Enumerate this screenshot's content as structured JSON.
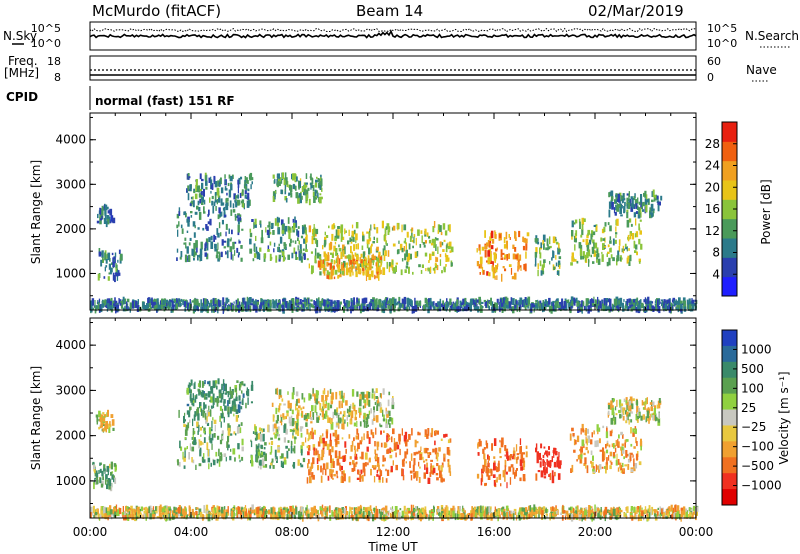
{
  "header": {
    "station": "McMurdo (fitACF)",
    "beam": "Beam 14",
    "date": "02/Mar/2019"
  },
  "strip_labels": {
    "nsky": "N.Sky",
    "nsearch": "N.Search",
    "freq": "Freq.",
    "freq_unit": "[MHz]",
    "nave": "Nave",
    "cpid": "CPID",
    "cpid_text": "normal (fast) 151 RF",
    "noise_ticks_left": [
      "10^5",
      "10^0"
    ],
    "noise_ticks_right": [
      "10^5",
      "10^0"
    ],
    "freq_ticks": [
      "18",
      "8"
    ],
    "nave_ticks": [
      "60",
      "0"
    ]
  },
  "chart_data": [
    {
      "type": "heatmap",
      "name": "power",
      "xlabel": "",
      "ylabel": "Slant Range [km]",
      "xlim": [
        0,
        24
      ],
      "ylim": [
        180,
        4600
      ],
      "yticks": [
        1000,
        2000,
        3000,
        4000
      ],
      "colorbar": {
        "label": "Power [dB]",
        "ticks": [
          4,
          8,
          12,
          16,
          20,
          24,
          28
        ],
        "range": [
          0,
          32
        ],
        "colors": [
          "#1f1fff",
          "#2a3fae",
          "#2b7a8a",
          "#4a9a5a",
          "#8ac43a",
          "#e8c418",
          "#f0a020",
          "#f06010",
          "#e82010"
        ]
      },
      "echo_regions": [
        {
          "t0": 0.2,
          "t1": 0.9,
          "r0": 2100,
          "r1": 2500,
          "level": 8
        },
        {
          "t0": 0.3,
          "t1": 1.2,
          "r0": 850,
          "r1": 1500,
          "level": 10
        },
        {
          "t0": 3.8,
          "t1": 6.4,
          "r0": 2500,
          "r1": 3200,
          "level": 10
        },
        {
          "t0": 3.4,
          "t1": 6.0,
          "r0": 1300,
          "r1": 2500,
          "level": 9
        },
        {
          "t0": 6.3,
          "t1": 8.5,
          "r0": 1300,
          "r1": 2200,
          "level": 11
        },
        {
          "t0": 7.2,
          "t1": 9.2,
          "r0": 2600,
          "r1": 3200,
          "level": 13
        },
        {
          "t0": 8.5,
          "t1": 14.3,
          "r0": 1000,
          "r1": 2100,
          "level": 17
        },
        {
          "t0": 9.0,
          "t1": 11.5,
          "r0": 900,
          "r1": 1400,
          "level": 22
        },
        {
          "t0": 15.3,
          "t1": 17.3,
          "r0": 900,
          "r1": 1900,
          "level": 24
        },
        {
          "t0": 17.6,
          "t1": 18.6,
          "r0": 1000,
          "r1": 1800,
          "level": 14
        },
        {
          "t0": 19.0,
          "t1": 21.8,
          "r0": 1200,
          "r1": 2200,
          "level": 15
        },
        {
          "t0": 20.5,
          "t1": 22.6,
          "r0": 2300,
          "r1": 2800,
          "level": 10
        },
        {
          "t0": 0.0,
          "t1": 24.0,
          "r0": 180,
          "r1": 400,
          "level": 9
        }
      ]
    },
    {
      "type": "heatmap",
      "name": "velocity",
      "xlabel": "Time UT",
      "ylabel": "Slant Range [km]",
      "xlim": [
        0,
        24
      ],
      "ylim": [
        180,
        4600
      ],
      "xticks": [
        "00:00",
        "04:00",
        "08:00",
        "12:00",
        "16:00",
        "20:00",
        "00:00"
      ],
      "yticks": [
        1000,
        2000,
        3000,
        4000
      ],
      "colorbar": {
        "label": "Velocity [m s⁻¹]",
        "ticks": [
          "1000",
          "500",
          "100",
          "25",
          "−25",
          "−100",
          "−500",
          "−1000"
        ],
        "colors": [
          "#2040c0",
          "#2a6a9a",
          "#3a8a6a",
          "#5aa050",
          "#90d040",
          "#c8c8c0",
          "#e8c840",
          "#f0a030",
          "#f07020",
          "#f03020",
          "#e00000"
        ]
      },
      "echo_regions": [
        {
          "t0": 0.2,
          "t1": 0.9,
          "r0": 2100,
          "r1": 2500,
          "v": 0
        },
        {
          "t0": 0.0,
          "t1": 1.0,
          "r0": 850,
          "r1": 1400,
          "v": 200
        },
        {
          "t0": 3.8,
          "t1": 6.4,
          "r0": 2500,
          "r1": 3200,
          "v": 300
        },
        {
          "t0": 3.4,
          "t1": 6.0,
          "r0": 1300,
          "r1": 2500,
          "v": 150
        },
        {
          "t0": 6.3,
          "t1": 8.5,
          "r0": 1300,
          "r1": 2200,
          "v": 150
        },
        {
          "t0": 7.2,
          "t1": 12.0,
          "r0": 2200,
          "r1": 3000,
          "v": 0
        },
        {
          "t0": 8.5,
          "t1": 14.3,
          "r0": 1000,
          "r1": 2100,
          "v": -300
        },
        {
          "t0": 15.3,
          "t1": 17.3,
          "r0": 900,
          "r1": 1900,
          "v": -350
        },
        {
          "t0": 17.6,
          "t1": 18.6,
          "r0": 1000,
          "r1": 1800,
          "v": -700
        },
        {
          "t0": 19.0,
          "t1": 21.8,
          "r0": 1200,
          "r1": 2200,
          "v": -150
        },
        {
          "t0": 20.5,
          "t1": 22.6,
          "r0": 2300,
          "r1": 2800,
          "v": 0
        },
        {
          "t0": 0.0,
          "t1": 24.0,
          "r0": 180,
          "r1": 400,
          "v": -60
        }
      ]
    }
  ]
}
